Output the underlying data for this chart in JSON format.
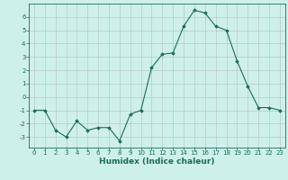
{
  "x": [
    0,
    1,
    2,
    3,
    4,
    5,
    6,
    7,
    8,
    9,
    10,
    11,
    12,
    13,
    14,
    15,
    16,
    17,
    18,
    19,
    20,
    21,
    22,
    23
  ],
  "y": [
    -1.0,
    -1.0,
    -2.5,
    -3.0,
    -1.8,
    -2.5,
    -2.3,
    -2.3,
    -3.3,
    -1.3,
    -1.0,
    2.2,
    3.2,
    3.3,
    5.3,
    6.5,
    6.3,
    5.3,
    5.0,
    2.7,
    0.8,
    -0.8,
    -0.8,
    -1.0
  ],
  "line_color": "#1a6b5a",
  "marker": "D",
  "marker_size": 1.8,
  "bg_color": "#cef0eb",
  "grid_color": "#b8c8c4",
  "xlabel": "Humidex (Indice chaleur)",
  "xlim": [
    -0.5,
    23.5
  ],
  "ylim": [
    -3.8,
    7.0
  ],
  "yticks": [
    -3,
    -2,
    -1,
    0,
    1,
    2,
    3,
    4,
    5,
    6
  ],
  "xticks": [
    0,
    1,
    2,
    3,
    4,
    5,
    6,
    7,
    8,
    9,
    10,
    11,
    12,
    13,
    14,
    15,
    16,
    17,
    18,
    19,
    20,
    21,
    22,
    23
  ],
  "tick_color": "#1a6b5a",
  "label_color": "#1a6b5a",
  "spine_color": "#1a6b5a",
  "tick_fontsize": 5.0,
  "xlabel_fontsize": 6.5,
  "linewidth": 0.8
}
